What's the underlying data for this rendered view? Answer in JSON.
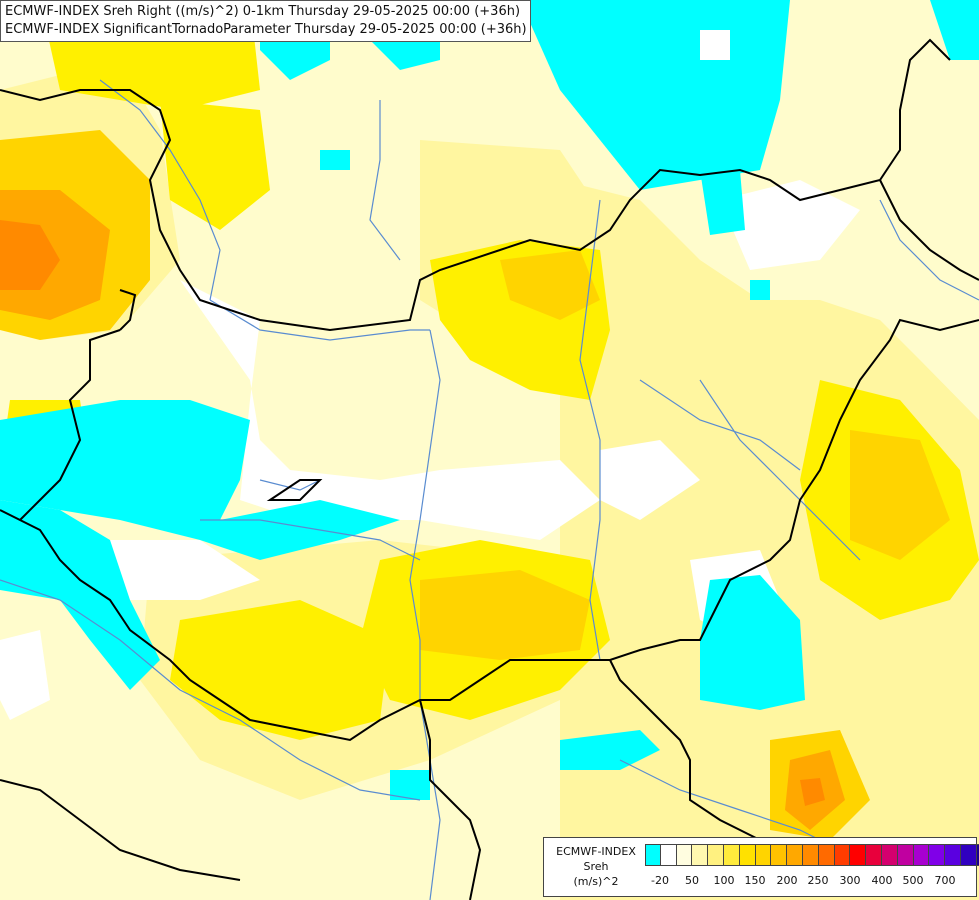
{
  "title": {
    "line1": "ECMWF-INDEX Sreh Right ((m/s)^2) 0-1km Thursday 29-05-2025 00:00 (+36h)",
    "line2": "ECMWF-INDEX SignificantTornadoParameter Thursday 29-05-2025 00:00 (+36h)"
  },
  "legend": {
    "source": "ECMWF-INDEX",
    "variable": "Sreh",
    "unit": "(m/s)^2",
    "colors": [
      "#00ffff",
      "#ffffff",
      "#fffde0",
      "#fff8b0",
      "#fff180",
      "#ffeb3c",
      "#ffe100",
      "#ffd400",
      "#ffc200",
      "#ffa800",
      "#ff8a00",
      "#ff6a00",
      "#ff3c00",
      "#ff0000",
      "#e8003c",
      "#d4006e",
      "#c000a0",
      "#a800d0",
      "#8000e8",
      "#5a00e0",
      "#3000c0",
      "#1a0090",
      "#000070"
    ],
    "ticks": [
      "-20",
      "50",
      "100",
      "150",
      "200",
      "250",
      "300",
      "400",
      "500",
      "700"
    ]
  },
  "colors": {
    "cyan": "#00ffff",
    "white": "#ffffff",
    "pale": "#fffccc",
    "light-yellow": "#fff6a0",
    "yellow": "#fff000",
    "gold": "#ffd400",
    "orange": "#ffa800",
    "river": "#5a8cd0",
    "border": "#000000"
  }
}
